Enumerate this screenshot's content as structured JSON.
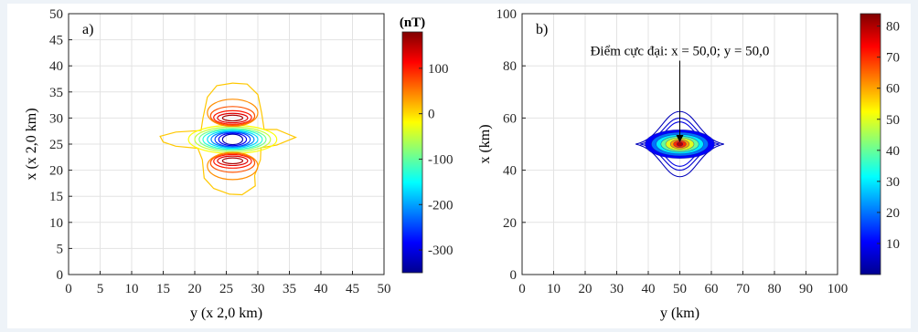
{
  "chart_data": [
    {
      "type": "contour",
      "panel_label": "a)",
      "xlabel": "y (x 2,0 km)",
      "ylabel": "x (x 2,0 km)",
      "xlim": [
        0,
        50
      ],
      "ylim": [
        0,
        50
      ],
      "xticks": [
        0,
        5,
        10,
        15,
        20,
        25,
        30,
        35,
        40,
        45,
        50
      ],
      "yticks": [
        0,
        5,
        10,
        15,
        20,
        25,
        30,
        35,
        40,
        45,
        50
      ],
      "grid": true,
      "colorbar": {
        "title": "(nT)",
        "range": [
          -350,
          180
        ],
        "ticks": [
          100,
          0,
          -100,
          -200,
          -300
        ],
        "colormap": "jet"
      },
      "field": {
        "type": "dipole",
        "center": [
          26,
          26
        ],
        "positive_peak": 180,
        "negative_peak": -350
      },
      "levels": [
        {
          "value": -330,
          "rx": 1.6,
          "ry": 1.0,
          "cx": 26,
          "cy": 25.9
        },
        {
          "value": -290,
          "rx": 2.2,
          "ry": 1.2,
          "cx": 26,
          "cy": 25.9
        },
        {
          "value": -250,
          "rx": 2.8,
          "ry": 1.4,
          "cx": 26,
          "cy": 25.9
        },
        {
          "value": -210,
          "rx": 3.4,
          "ry": 1.5,
          "cx": 26,
          "cy": 25.9
        },
        {
          "value": -170,
          "rx": 4.0,
          "ry": 1.7,
          "cx": 26,
          "cy": 25.9
        },
        {
          "value": -130,
          "rx": 4.7,
          "ry": 1.9,
          "cx": 26,
          "cy": 25.9
        },
        {
          "value": -90,
          "rx": 5.3,
          "ry": 2.1,
          "cx": 26,
          "cy": 25.9
        },
        {
          "value": -50,
          "rx": 6.0,
          "ry": 2.4,
          "cx": 26,
          "cy": 25.9
        },
        {
          "value": -20,
          "rx": 7.0,
          "ry": 2.7,
          "cx": 26,
          "cy": 25.9
        },
        {
          "value": 160,
          "rx": 1.6,
          "ry": 0.55,
          "cx": 26,
          "cy": 30.0
        },
        {
          "value": 130,
          "rx": 2.4,
          "ry": 0.9,
          "cx": 26,
          "cy": 30.0
        },
        {
          "value": 100,
          "rx": 3.0,
          "ry": 1.3,
          "cx": 26,
          "cy": 30.1
        },
        {
          "value": 70,
          "rx": 3.5,
          "ry": 1.8,
          "cx": 26,
          "cy": 30.4
        },
        {
          "value": 40,
          "rx": 4.0,
          "ry": 2.6,
          "cx": 26,
          "cy": 31.0
        },
        {
          "value": 160,
          "rx": 1.6,
          "ry": 0.55,
          "cx": 26,
          "cy": 21.8
        },
        {
          "value": 130,
          "rx": 2.4,
          "ry": 0.9,
          "cx": 26,
          "cy": 21.8
        },
        {
          "value": 100,
          "rx": 3.0,
          "ry": 1.3,
          "cx": 26,
          "cy": 21.7
        },
        {
          "value": 70,
          "rx": 3.5,
          "ry": 1.8,
          "cx": 26,
          "cy": 21.4
        },
        {
          "value": 40,
          "rx": 4.0,
          "ry": 2.6,
          "cx": 26,
          "cy": 20.8
        }
      ],
      "outer_contour": {
        "value": 10,
        "points": [
          [
            14.5,
            26.5
          ],
          [
            17,
            27.3
          ],
          [
            21,
            27.6
          ],
          [
            21.3,
            30
          ],
          [
            22,
            34
          ],
          [
            23.5,
            36.2
          ],
          [
            26,
            36.7
          ],
          [
            28.3,
            36.5
          ],
          [
            30,
            34.5
          ],
          [
            30.6,
            31
          ],
          [
            31,
            27.8
          ],
          [
            33,
            27.8
          ],
          [
            36,
            26.3
          ],
          [
            33,
            24.8
          ],
          [
            30.5,
            24.3
          ],
          [
            30.4,
            22
          ],
          [
            29.5,
            19
          ],
          [
            29.6,
            17
          ],
          [
            27.5,
            15.3
          ],
          [
            25.5,
            15.4
          ],
          [
            23,
            16.5
          ],
          [
            21.5,
            18.5
          ],
          [
            21.2,
            22
          ],
          [
            20.5,
            24.2
          ],
          [
            17,
            24.6
          ],
          [
            15,
            25.4
          ]
        ]
      }
    },
    {
      "type": "contour",
      "panel_label": "b)",
      "xlabel": "y (km)",
      "ylabel": "x (km)",
      "xlim": [
        0,
        100
      ],
      "ylim": [
        0,
        100
      ],
      "xticks": [
        0,
        10,
        20,
        30,
        40,
        50,
        60,
        70,
        80,
        90,
        100
      ],
      "yticks": [
        0,
        20,
        40,
        60,
        80,
        100
      ],
      "grid": true,
      "colorbar": {
        "title": "",
        "range": [
          0,
          84
        ],
        "ticks": [
          80,
          70,
          60,
          50,
          40,
          30,
          20,
          10
        ],
        "colormap": "jet"
      },
      "peak": {
        "x": 50.0,
        "y": 50.0,
        "value": 84
      },
      "annotation": "Điểm cực đại: x = 50,0; y = 50,0",
      "annotation_anchor": {
        "x": 50,
        "y": 82
      },
      "levels": [
        {
          "value": 80,
          "rx": 1.0,
          "ry": 0.8
        },
        {
          "value": 70,
          "rx": 2.0,
          "ry": 1.3
        },
        {
          "value": 60,
          "rx": 3.0,
          "ry": 1.8
        },
        {
          "value": 50,
          "rx": 4.5,
          "ry": 2.4
        },
        {
          "value": 40,
          "rx": 6.0,
          "ry": 3.0
        },
        {
          "value": 30,
          "rx": 7.5,
          "ry": 3.7
        },
        {
          "value": 20,
          "rx": 9.0,
          "ry": 4.5
        },
        {
          "value": 10,
          "rx": 11.0,
          "ry": 5.5
        }
      ],
      "diamond_levels": [
        {
          "value": 8,
          "rx": 11.0,
          "ry": 8.5
        },
        {
          "value": 6,
          "rx": 12.5,
          "ry": 10.0
        },
        {
          "value": 4,
          "rx": 14.0,
          "ry": 12.5
        }
      ]
    }
  ]
}
